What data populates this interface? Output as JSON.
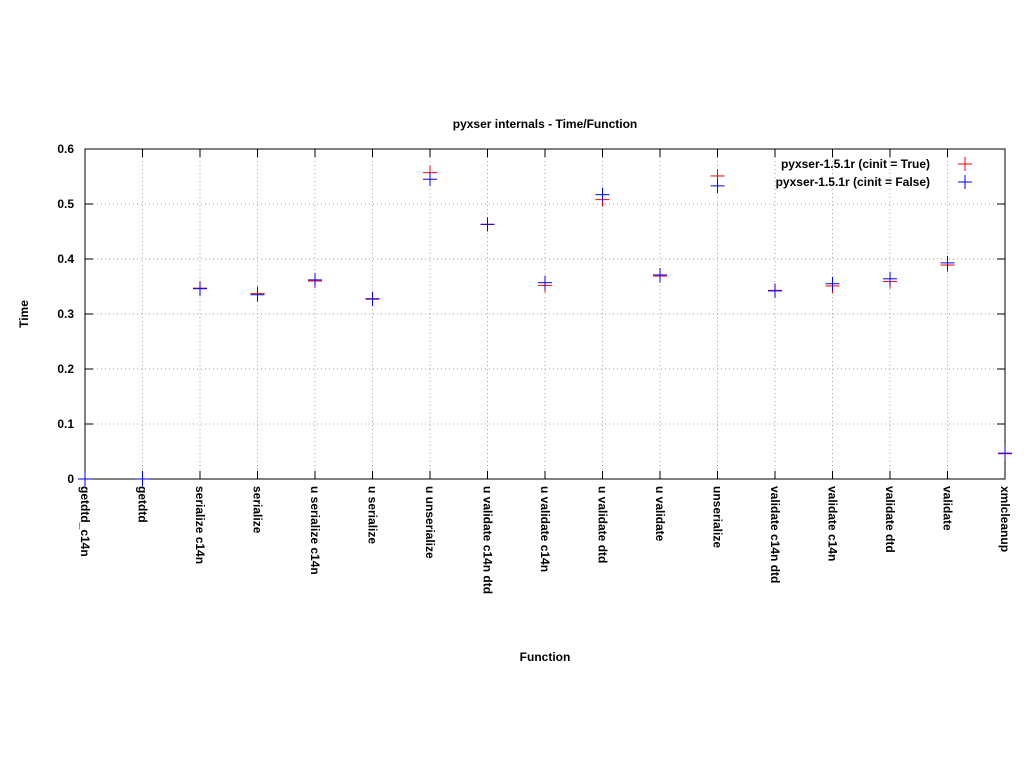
{
  "chart_data": {
    "type": "scatter",
    "title": "pyxser internals - Time/Function",
    "xlabel": "Function",
    "ylabel": "Time",
    "categories": [
      "getdtd_c14n",
      "getdtd",
      "serialize c14n",
      "serialize",
      "u serialize c14n",
      "u serialize",
      "u unserialize",
      "u validate c14n dtd",
      "u validate c14n",
      "u validate dtd",
      "u validate",
      "unserialize",
      "validate c14n dtd",
      "validate c14n",
      "validate dtd",
      "validate",
      "xmlcleanup"
    ],
    "ylim": [
      0,
      0.6
    ],
    "yticks": [
      "0",
      "0.1",
      "0.2",
      "0.3",
      "0.4",
      "0.5",
      "0.6"
    ],
    "grid": true,
    "legend_position": "top-right",
    "series": [
      {
        "name": "pyxser-1.5.1r (cinit = True)",
        "color": "#ff0000",
        "values": [
          0.0,
          0.0,
          0.347,
          0.337,
          0.36,
          0.328,
          0.557,
          0.463,
          0.352,
          0.508,
          0.369,
          0.551,
          0.343,
          0.351,
          0.359,
          0.389,
          0.046
        ]
      },
      {
        "name": "pyxser-1.5.1r (cinit = False)",
        "color": "#0000ff",
        "values": [
          0.0,
          0.0,
          0.346,
          0.335,
          0.362,
          0.327,
          0.545,
          0.463,
          0.357,
          0.517,
          0.371,
          0.533,
          0.342,
          0.355,
          0.364,
          0.393,
          0.047
        ]
      }
    ]
  }
}
